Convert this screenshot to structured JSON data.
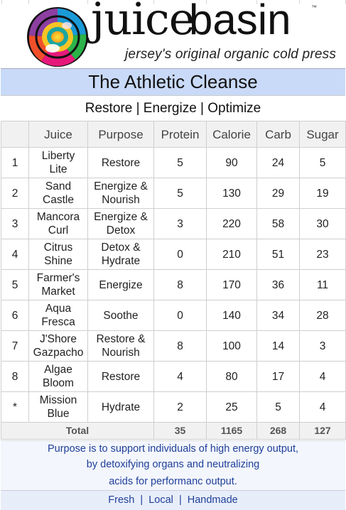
{
  "brand": {
    "name_part1": "juice",
    "name_part2": "basin",
    "trademark": "™",
    "tagline": "jersey's original organic cold press"
  },
  "title": "The Athletic Cleanse",
  "subtitle": "Restore | Energize | Optimize",
  "table": {
    "headers": [
      "",
      "Juice",
      "Purpose",
      "Protein",
      "Calorie",
      "Carb",
      "Sugar"
    ],
    "rows": [
      {
        "num": "1",
        "juice": [
          "Liberty",
          "Lite"
        ],
        "purpose": [
          "Restore"
        ],
        "protein": "5",
        "calorie": "90",
        "carb": "24",
        "sugar": "5"
      },
      {
        "num": "2",
        "juice": [
          "Sand",
          "Castle"
        ],
        "purpose": [
          "Energize &",
          "Nourish"
        ],
        "protein": "5",
        "calorie": "130",
        "carb": "29",
        "sugar": "19"
      },
      {
        "num": "3",
        "juice": [
          "Mancora",
          "Curl"
        ],
        "purpose": [
          "Energize &",
          "Detox"
        ],
        "protein": "3",
        "calorie": "220",
        "carb": "58",
        "sugar": "30"
      },
      {
        "num": "4",
        "juice": [
          "Citrus",
          "Shine"
        ],
        "purpose": [
          "Detox &",
          "Hydrate"
        ],
        "protein": "0",
        "calorie": "210",
        "carb": "51",
        "sugar": "23"
      },
      {
        "num": "5",
        "juice": [
          "Farmer's",
          "Market"
        ],
        "purpose": [
          "Energize"
        ],
        "protein": "8",
        "calorie": "170",
        "carb": "36",
        "sugar": "11"
      },
      {
        "num": "6",
        "juice": [
          "Aqua",
          "Fresca"
        ],
        "purpose": [
          "Soothe"
        ],
        "protein": "0",
        "calorie": "140",
        "carb": "34",
        "sugar": "28"
      },
      {
        "num": "7",
        "juice": [
          "J'Shore",
          "Gazpacho"
        ],
        "purpose": [
          "Restore &",
          "Nourish"
        ],
        "protein": "8",
        "calorie": "100",
        "carb": "14",
        "sugar": "3"
      },
      {
        "num": "8",
        "juice": [
          "Algae",
          "Bloom"
        ],
        "purpose": [
          "Restore"
        ],
        "protein": "4",
        "calorie": "80",
        "carb": "17",
        "sugar": "4"
      },
      {
        "num": "*",
        "juice": [
          "Mission",
          "Blue"
        ],
        "purpose": [
          "Hydrate"
        ],
        "protein": "2",
        "calorie": "25",
        "carb": "5",
        "sugar": "4"
      }
    ],
    "total": {
      "label": "Total",
      "protein": "35",
      "calorie": "1165",
      "carb": "268",
      "sugar": "127"
    }
  },
  "footer": {
    "line1": "Purpose is to support individuals of high energy output,",
    "line2": "by detoxifying organs and neutralizing",
    "line3": "acids for performanc output.",
    "line4": "Fresh  |  Local  |  Handmade"
  }
}
